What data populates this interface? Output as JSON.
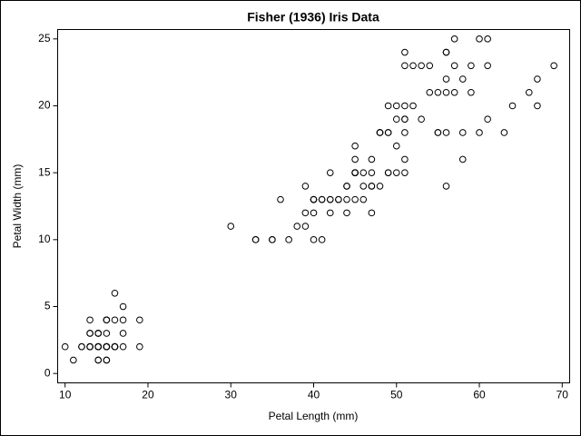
{
  "chart_data": {
    "type": "scatter",
    "title": "Fisher (1936) Iris Data",
    "x_label": "Petal Length (mm)",
    "y_label": "Petal Width (mm)",
    "x": [
      14,
      14,
      13,
      15,
      14,
      17,
      14,
      15,
      14,
      15,
      15,
      16,
      14,
      11,
      12,
      15,
      13,
      14,
      17,
      15,
      17,
      15,
      10,
      17,
      19,
      16,
      16,
      15,
      14,
      16,
      16,
      15,
      15,
      14,
      15,
      12,
      13,
      14,
      13,
      15,
      13,
      13,
      13,
      16,
      19,
      14,
      16,
      14,
      15,
      14,
      47,
      45,
      49,
      40,
      46,
      45,
      47,
      33,
      46,
      39,
      35,
      42,
      40,
      47,
      36,
      44,
      45,
      41,
      45,
      39,
      48,
      40,
      49,
      47,
      43,
      44,
      48,
      50,
      45,
      35,
      38,
      37,
      39,
      51,
      45,
      45,
      47,
      44,
      41,
      40,
      44,
      46,
      40,
      33,
      42,
      42,
      42,
      43,
      30,
      41,
      60,
      51,
      59,
      56,
      58,
      66,
      45,
      63,
      58,
      61,
      51,
      53,
      55,
      50,
      51,
      53,
      55,
      67,
      69,
      50,
      57,
      49,
      67,
      49,
      57,
      60,
      48,
      49,
      56,
      58,
      61,
      64,
      56,
      51,
      56,
      61,
      56,
      55,
      48,
      54,
      56,
      51,
      51,
      59,
      57,
      52,
      50,
      52,
      54,
      51
    ],
    "values": [
      2,
      2,
      2,
      2,
      2,
      4,
      3,
      2,
      2,
      1,
      2,
      2,
      1,
      1,
      2,
      4,
      4,
      3,
      3,
      3,
      2,
      4,
      2,
      5,
      2,
      2,
      4,
      2,
      2,
      2,
      2,
      4,
      1,
      2,
      2,
      2,
      2,
      1,
      2,
      2,
      3,
      3,
      2,
      6,
      4,
      3,
      2,
      2,
      2,
      2,
      14,
      15,
      15,
      13,
      15,
      13,
      16,
      10,
      13,
      14,
      10,
      15,
      10,
      14,
      13,
      14,
      15,
      10,
      15,
      11,
      18,
      13,
      15,
      12,
      13,
      14,
      14,
      17,
      15,
      10,
      11,
      10,
      12,
      16,
      15,
      16,
      15,
      13,
      13,
      13,
      12,
      14,
      12,
      10,
      13,
      12,
      13,
      13,
      11,
      13,
      25,
      19,
      21,
      18,
      22,
      21,
      17,
      18,
      18,
      25,
      20,
      19,
      21,
      20,
      24,
      23,
      18,
      22,
      23,
      15,
      23,
      20,
      20,
      18,
      21,
      18,
      18,
      18,
      21,
      16,
      19,
      20,
      22,
      15,
      14,
      23,
      24,
      18,
      18,
      21,
      24,
      23,
      19,
      23,
      25,
      23,
      19,
      20,
      23,
      18
    ],
    "color": "#000000",
    "xlim": [
      9.1,
      70.9
    ],
    "xticks": [
      10,
      20,
      30,
      40,
      50,
      60,
      70
    ],
    "ylim": [
      -0.7,
      25.7
    ],
    "yticks": [
      0,
      5,
      10,
      15,
      20,
      25
    ],
    "grid": false
  }
}
